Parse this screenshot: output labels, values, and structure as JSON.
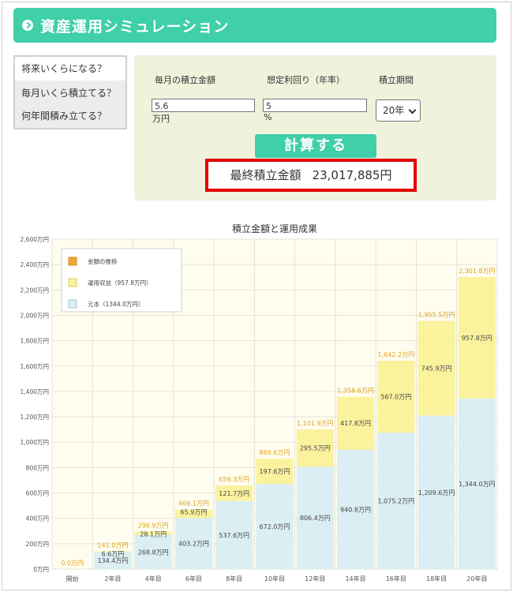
{
  "header": {
    "title": "資産運用シミュレーション"
  },
  "tabs": [
    {
      "label": "将来いくらになる？",
      "active": true
    },
    {
      "label": "毎月いくら積立てる？",
      "active": false
    },
    {
      "label": "何年間積み立てる？",
      "active": false
    }
  ],
  "form": {
    "monthly_label": "毎月の積立金額",
    "monthly_value": "5.6",
    "monthly_unit": "万円",
    "rate_label": "想定利回り（年率）",
    "rate_value": "5",
    "rate_unit": "%",
    "period_label": "積立期間",
    "period_value": "20年",
    "calc_label": "計算する"
  },
  "result": {
    "label": "最終積立金額",
    "value": "23,017,885円"
  },
  "colors": {
    "accent": "#3fcfa9",
    "principal": "#dbeef4",
    "return": "#fbf29e",
    "total_label": "#e0a21a",
    "highlight": "#e00000"
  },
  "chart_data": {
    "type": "bar",
    "title": "積立金額と運用成果",
    "categories": [
      "開始",
      "2年目",
      "4年目",
      "6年目",
      "8年目",
      "10年目",
      "12年目",
      "14年目",
      "16年目",
      "18年目",
      "20年目"
    ],
    "ylim": [
      0,
      2600
    ],
    "yticks": [
      0,
      200,
      400,
      600,
      800,
      1000,
      1200,
      1400,
      1600,
      1800,
      2000,
      2200,
      2400,
      2600
    ],
    "ytick_labels": [
      "0万円",
      "200万円",
      "400万円",
      "600万円",
      "800万円",
      "1,000万円",
      "1,200万円",
      "1,400万円",
      "1,600万円",
      "1,800万円",
      "2,000万円",
      "2,200万円",
      "2,400万円",
      "2,600万円"
    ],
    "grid": true,
    "legend_position": "top-left",
    "series": [
      {
        "name": "元本（1344.0万円）",
        "values": [
          0,
          134.4,
          268.8,
          403.2,
          537.6,
          672.0,
          806.4,
          940.8,
          1075.2,
          1209.6,
          1344.0
        ],
        "labels": [
          "",
          "134.4万円",
          "268.8万円",
          "403.2万円",
          "537.6万円",
          "672.0万円",
          "806.4万円",
          "940.8万円",
          "1,075.2万円",
          "1,209.6万円",
          "1,344.0万円"
        ]
      },
      {
        "name": "運用収益（957.8万円）",
        "values": [
          0,
          6.6,
          28.1,
          65.9,
          121.7,
          197.6,
          295.5,
          417.8,
          567.0,
          745.9,
          957.8
        ],
        "labels": [
          "",
          "6.6万円",
          "28.1万円",
          "65.9万円",
          "121.7万円",
          "197.6万円",
          "295.5万円",
          "417.8万円",
          "567.0万円",
          "745.9万円",
          "957.8万円"
        ]
      }
    ],
    "totals": [
      "0.0万円",
      "141.0万円",
      "296.9万円",
      "469.1万円",
      "659.3万円",
      "869.6万円",
      "1,101.9万円",
      "1,358.6万円",
      "1,642.2万円",
      "1,955.5万円",
      "2,301.8万円"
    ],
    "total_values": [
      0,
      141.0,
      296.9,
      469.1,
      659.3,
      869.6,
      1101.9,
      1358.6,
      1642.2,
      1955.5,
      2301.8
    ],
    "legend_total_label": "金額の推移"
  }
}
